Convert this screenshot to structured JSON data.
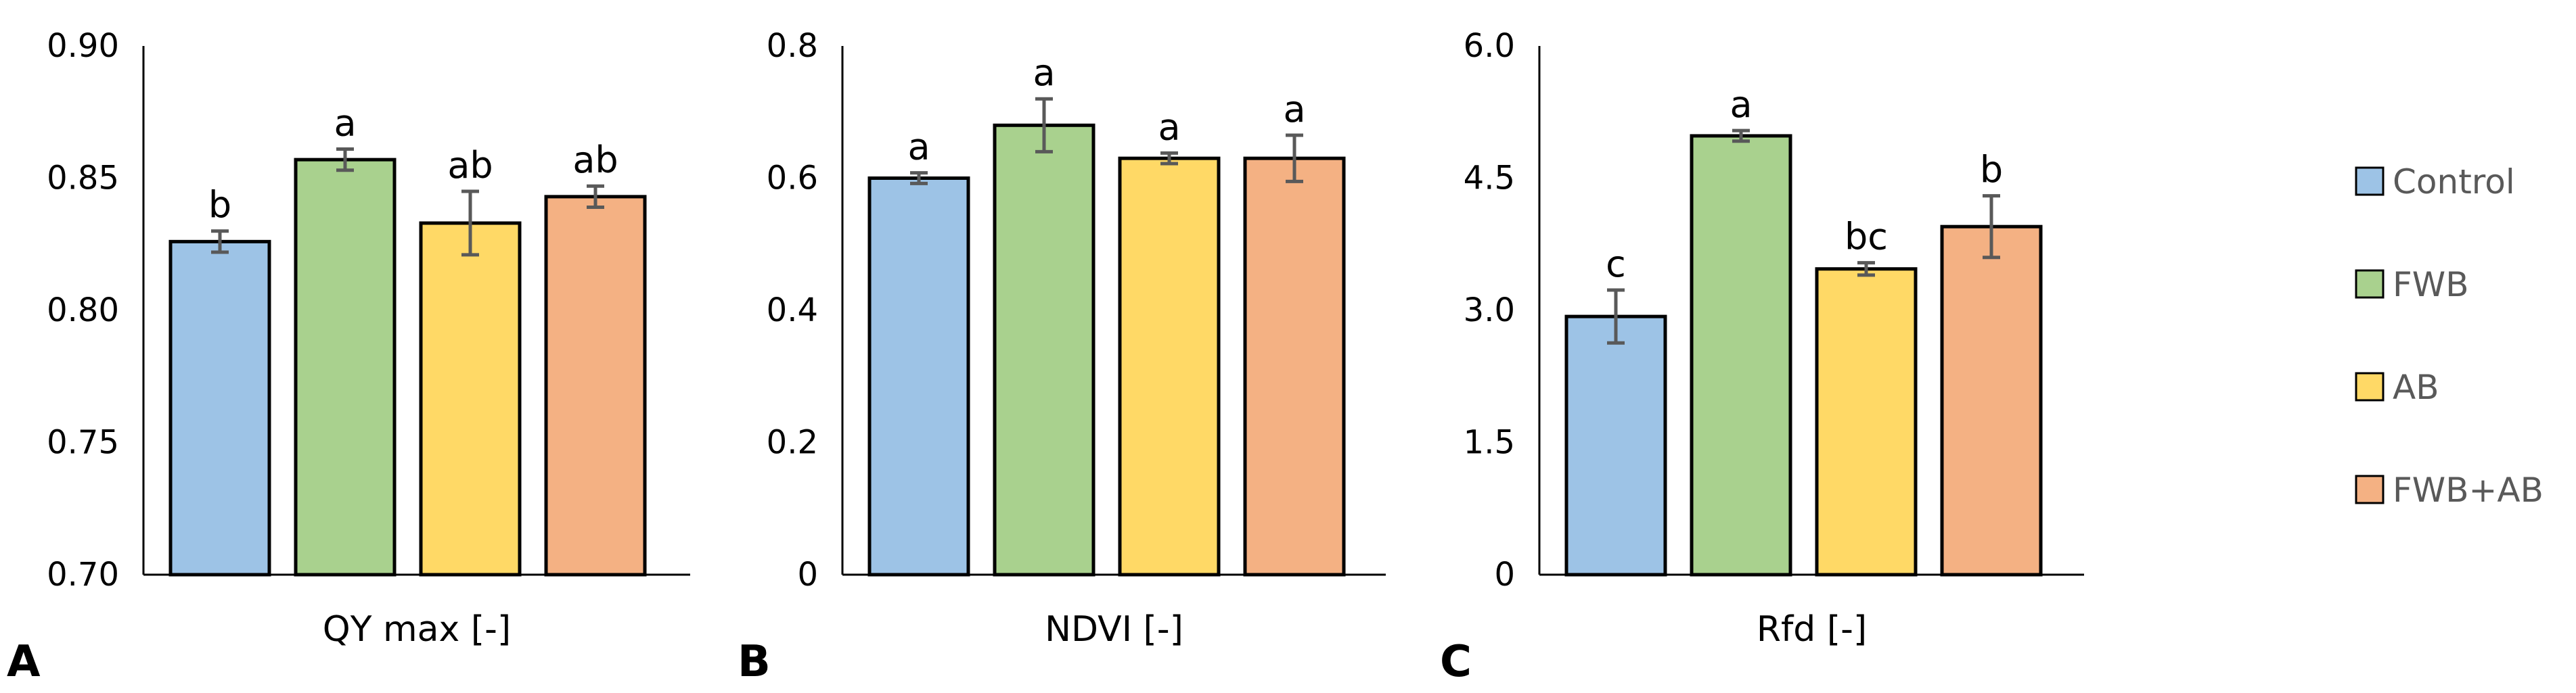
{
  "colors": {
    "Control": "#9dc3e6",
    "FWB": "#a9d18e",
    "AB": "#ffd966",
    "FWB+AB": "#f4b183",
    "bar_outline": "#000000",
    "error_bar": "#595959",
    "axis": "#000000"
  },
  "legend": {
    "entries": [
      "Control",
      "FWB",
      "AB",
      "FWB+AB"
    ]
  },
  "chart_data": [
    {
      "type": "bar",
      "panel": "A",
      "xlabel": "QY max [-]",
      "ylim": [
        0.7,
        0.9
      ],
      "yticks": [
        "0.70",
        "0.75",
        "0.80",
        "0.85",
        "0.90"
      ],
      "categories": [
        "Control",
        "FWB",
        "AB",
        "FWB+AB"
      ],
      "values": [
        0.826,
        0.857,
        0.833,
        0.843
      ],
      "errors": [
        0.004,
        0.004,
        0.012,
        0.004
      ],
      "significance": [
        "b",
        "a",
        "ab",
        "ab"
      ]
    },
    {
      "type": "bar",
      "panel": "B",
      "xlabel": "NDVI [-]",
      "ylim": [
        0,
        0.8
      ],
      "yticks": [
        "0",
        "0.2",
        "0.4",
        "0.6",
        "0.8"
      ],
      "categories": [
        "Control",
        "FWB",
        "AB",
        "FWB+AB"
      ],
      "values": [
        0.6,
        0.68,
        0.63,
        0.63
      ],
      "errors": [
        0.008,
        0.04,
        0.008,
        0.035
      ],
      "significance": [
        "a",
        "a",
        "a",
        "a"
      ]
    },
    {
      "type": "bar",
      "panel": "C",
      "xlabel": "Rfd [-]",
      "ylim": [
        0,
        6.0
      ],
      "yticks": [
        "0",
        "1.5",
        "3.0",
        "4.5",
        "6.0"
      ],
      "categories": [
        "Control",
        "FWB",
        "AB",
        "FWB+AB"
      ],
      "values": [
        2.93,
        4.98,
        3.47,
        3.95
      ],
      "errors": [
        0.3,
        0.06,
        0.07,
        0.35
      ],
      "significance": [
        "c",
        "a",
        "bc",
        "b"
      ]
    }
  ]
}
